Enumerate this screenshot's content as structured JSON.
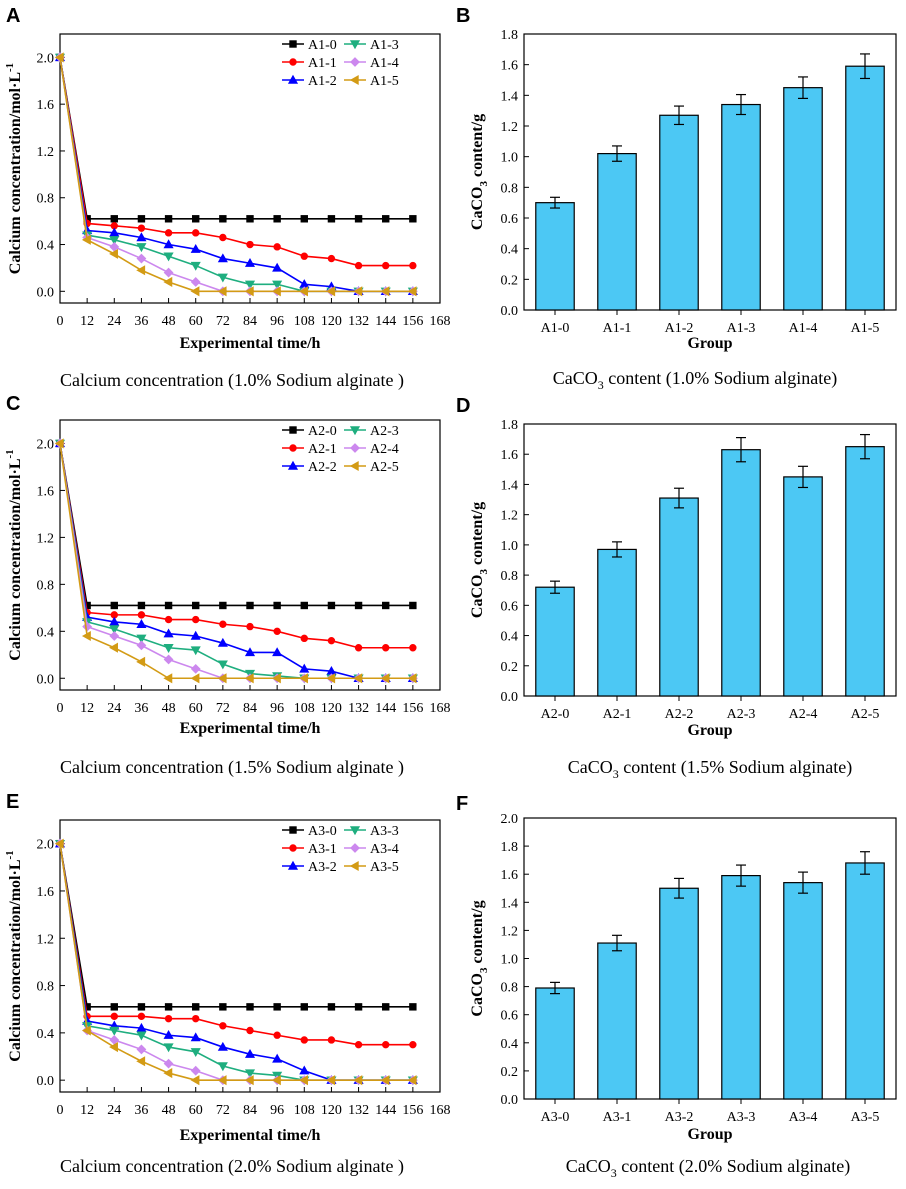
{
  "colors": {
    "bar_fill": "#4cc8f4",
    "bar_stroke": "#000000",
    "axis": "#000000",
    "series": [
      "#000000",
      "#ff0000",
      "#0000ff",
      "#1fae7f",
      "#cc88ee",
      "#d39b15"
    ]
  },
  "chart_data": [
    {
      "id": "A",
      "letter": "A",
      "type": "line",
      "xlabel": "Experimental time/h",
      "ylabel": "Calcium concentration/mol·L",
      "ylabel_sup": "-1",
      "x_ticks": [
        "0",
        "12",
        "24",
        "36",
        "48",
        "60",
        "72",
        "84",
        "96",
        "108",
        "120",
        "132",
        "144",
        "156",
        "168"
      ],
      "xlim": [
        0,
        168
      ],
      "ylim": [
        -0.1,
        2.2
      ],
      "y_ticks": [
        "0.0",
        "0.4",
        "0.8",
        "1.2",
        "1.6",
        "2.0"
      ],
      "caption": "Calcium concentration (1.0% Sodium alginate )",
      "x": [
        0,
        12,
        24,
        36,
        48,
        60,
        72,
        84,
        96,
        108,
        120,
        132,
        144,
        156
      ],
      "series": [
        {
          "name": "A1-0",
          "marker": "square",
          "values": [
            2.0,
            0.62,
            0.62,
            0.62,
            0.62,
            0.62,
            0.62,
            0.62,
            0.62,
            0.62,
            0.62,
            0.62,
            0.62,
            0.62
          ]
        },
        {
          "name": "A1-1",
          "marker": "circle",
          "values": [
            2.0,
            0.58,
            0.56,
            0.54,
            0.5,
            0.5,
            0.46,
            0.4,
            0.38,
            0.3,
            0.28,
            0.22,
            0.22,
            0.22
          ]
        },
        {
          "name": "A1-2",
          "marker": "triangle-up",
          "values": [
            2.0,
            0.52,
            0.5,
            0.46,
            0.4,
            0.36,
            0.28,
            0.24,
            0.2,
            0.06,
            0.04,
            0.0,
            0.0,
            0.0
          ]
        },
        {
          "name": "A1-3",
          "marker": "triangle-down",
          "values": [
            2.0,
            0.48,
            0.44,
            0.38,
            0.3,
            0.22,
            0.12,
            0.06,
            0.06,
            0.0,
            0.0,
            0.0,
            0.0,
            0.0
          ]
        },
        {
          "name": "A1-4",
          "marker": "diamond",
          "values": [
            2.0,
            0.46,
            0.38,
            0.28,
            0.16,
            0.08,
            0.0,
            0.0,
            0.0,
            0.0,
            0.0,
            0.0,
            0.0,
            0.0
          ]
        },
        {
          "name": "A1-5",
          "marker": "left-triangle",
          "values": [
            2.0,
            0.44,
            0.32,
            0.18,
            0.08,
            0.0,
            0.0,
            0.0,
            0.0,
            0.0,
            0.0,
            0.0,
            0.0,
            0.0
          ]
        }
      ]
    },
    {
      "id": "B",
      "letter": "B",
      "type": "bar",
      "xlabel": "Group",
      "ylabel_main": "CaCO",
      "ylabel_sub": "3",
      "ylabel_tail": " content/g",
      "ylim": [
        0,
        1.8
      ],
      "y_ticks": [
        "0.0",
        "0.2",
        "0.4",
        "0.6",
        "0.8",
        "1.0",
        "1.2",
        "1.4",
        "1.6",
        "1.8"
      ],
      "caption_main": "CaCO",
      "caption_sub": "3",
      "caption_tail": " content (1.0% Sodium alginate)",
      "categories": [
        "A1-0",
        "A1-1",
        "A1-2",
        "A1-3",
        "A1-4",
        "A1-5"
      ],
      "values": [
        0.7,
        1.02,
        1.27,
        1.34,
        1.45,
        1.59
      ],
      "errors": [
        0.035,
        0.05,
        0.06,
        0.065,
        0.07,
        0.08
      ]
    },
    {
      "id": "C",
      "letter": "C",
      "type": "line",
      "xlabel": "Experimental time/h",
      "ylabel": "Calcium concentration/mol·L",
      "ylabel_sup": "-1",
      "x_ticks": [
        "0",
        "12",
        "24",
        "36",
        "48",
        "60",
        "72",
        "84",
        "96",
        "108",
        "120",
        "132",
        "144",
        "156",
        "168"
      ],
      "xlim": [
        0,
        168
      ],
      "ylim": [
        -0.1,
        2.2
      ],
      "y_ticks": [
        "0.0",
        "0.4",
        "0.8",
        "1.2",
        "1.6",
        "2.0"
      ],
      "caption": "Calcium concentration (1.5% Sodium alginate )",
      "x": [
        0,
        12,
        24,
        36,
        48,
        60,
        72,
        84,
        96,
        108,
        120,
        132,
        144,
        156
      ],
      "series": [
        {
          "name": "A2-0",
          "marker": "square",
          "values": [
            2.0,
            0.62,
            0.62,
            0.62,
            0.62,
            0.62,
            0.62,
            0.62,
            0.62,
            0.62,
            0.62,
            0.62,
            0.62,
            0.62
          ]
        },
        {
          "name": "A2-1",
          "marker": "circle",
          "values": [
            2.0,
            0.56,
            0.54,
            0.54,
            0.5,
            0.5,
            0.46,
            0.44,
            0.4,
            0.34,
            0.32,
            0.26,
            0.26,
            0.26
          ]
        },
        {
          "name": "A2-2",
          "marker": "triangle-up",
          "values": [
            2.0,
            0.52,
            0.48,
            0.46,
            0.38,
            0.36,
            0.3,
            0.22,
            0.22,
            0.08,
            0.06,
            0.0,
            0.0,
            0.0
          ]
        },
        {
          "name": "A2-3",
          "marker": "triangle-down",
          "values": [
            2.0,
            0.48,
            0.42,
            0.34,
            0.26,
            0.24,
            0.12,
            0.04,
            0.02,
            0.0,
            0.0,
            0.0,
            0.0,
            0.0
          ]
        },
        {
          "name": "A2-4",
          "marker": "diamond",
          "values": [
            2.0,
            0.44,
            0.36,
            0.28,
            0.16,
            0.08,
            0.0,
            0.0,
            0.0,
            0.0,
            0.0,
            0.0,
            0.0,
            0.0
          ]
        },
        {
          "name": "A2-5",
          "marker": "left-triangle",
          "values": [
            2.0,
            0.36,
            0.26,
            0.14,
            0.0,
            0.0,
            0.0,
            0.0,
            0.0,
            0.0,
            0.0,
            0.0,
            0.0,
            0.0
          ]
        }
      ]
    },
    {
      "id": "D",
      "letter": "D",
      "type": "bar",
      "xlabel": "Group",
      "ylabel_main": "CaCO",
      "ylabel_sub": "3",
      "ylabel_tail": " content/g",
      "ylim": [
        0,
        1.8
      ],
      "y_ticks": [
        "0.0",
        "0.2",
        "0.4",
        "0.6",
        "0.8",
        "1.0",
        "1.2",
        "1.4",
        "1.6",
        "1.8"
      ],
      "caption_main": "CaCO",
      "caption_sub": "3",
      "caption_tail": " content (1.5% Sodium alginate)",
      "categories": [
        "A2-0",
        "A2-1",
        "A2-2",
        "A2-3",
        "A2-4",
        "A2-5"
      ],
      "values": [
        0.72,
        0.97,
        1.31,
        1.63,
        1.45,
        1.65
      ],
      "errors": [
        0.04,
        0.05,
        0.065,
        0.08,
        0.07,
        0.08
      ]
    },
    {
      "id": "E",
      "letter": "E",
      "type": "line",
      "xlabel": "Experimental time/h",
      "ylabel": "Calcium concentration/mol·L",
      "ylabel_sup": "-1",
      "x_ticks": [
        "0",
        "12",
        "24",
        "36",
        "48",
        "60",
        "72",
        "84",
        "96",
        "108",
        "120",
        "132",
        "144",
        "156",
        "168"
      ],
      "xlim": [
        0,
        168
      ],
      "ylim": [
        -0.1,
        2.2
      ],
      "y_ticks": [
        "0.0",
        "0.4",
        "0.8",
        "1.2",
        "1.6",
        "2.0"
      ],
      "caption": "Calcium concentration (2.0% Sodium alginate )",
      "x": [
        0,
        12,
        24,
        36,
        48,
        60,
        72,
        84,
        96,
        108,
        120,
        132,
        144,
        156
      ],
      "series": [
        {
          "name": "A3-0",
          "marker": "square",
          "values": [
            2.0,
            0.62,
            0.62,
            0.62,
            0.62,
            0.62,
            0.62,
            0.62,
            0.62,
            0.62,
            0.62,
            0.62,
            0.62,
            0.62
          ]
        },
        {
          "name": "A3-1",
          "marker": "circle",
          "values": [
            2.0,
            0.54,
            0.54,
            0.54,
            0.52,
            0.52,
            0.46,
            0.42,
            0.38,
            0.34,
            0.34,
            0.3,
            0.3,
            0.3
          ]
        },
        {
          "name": "A3-2",
          "marker": "triangle-up",
          "values": [
            2.0,
            0.5,
            0.46,
            0.44,
            0.38,
            0.36,
            0.28,
            0.22,
            0.18,
            0.08,
            0.0,
            0.0,
            0.0,
            0.0
          ]
        },
        {
          "name": "A3-3",
          "marker": "triangle-down",
          "values": [
            2.0,
            0.46,
            0.42,
            0.38,
            0.28,
            0.24,
            0.12,
            0.06,
            0.04,
            0.0,
            0.0,
            0.0,
            0.0,
            0.0
          ]
        },
        {
          "name": "A3-4",
          "marker": "diamond",
          "values": [
            2.0,
            0.42,
            0.34,
            0.26,
            0.14,
            0.08,
            0.0,
            0.0,
            0.0,
            0.0,
            0.0,
            0.0,
            0.0,
            0.0
          ]
        },
        {
          "name": "A3-5",
          "marker": "left-triangle",
          "values": [
            2.0,
            0.42,
            0.28,
            0.16,
            0.06,
            0.0,
            0.0,
            0.0,
            0.0,
            0.0,
            0.0,
            0.0,
            0.0,
            0.0
          ]
        }
      ]
    },
    {
      "id": "F",
      "letter": "F",
      "type": "bar",
      "xlabel": "Group",
      "ylabel_main": "CaCO",
      "ylabel_sub": "3",
      "ylabel_tail": " content/g",
      "ylim": [
        0,
        2.0
      ],
      "y_ticks": [
        "0.0",
        "0.2",
        "0.4",
        "0.6",
        "0.8",
        "1.0",
        "1.2",
        "1.4",
        "1.6",
        "1.8",
        "2.0"
      ],
      "caption_main": "CaCO",
      "caption_sub": "3",
      "caption_tail": " content (2.0% Sodium alginate)",
      "categories": [
        "A3-0",
        "A3-1",
        "A3-2",
        "A3-3",
        "A3-4",
        "A3-5"
      ],
      "values": [
        0.79,
        1.11,
        1.5,
        1.59,
        1.54,
        1.68
      ],
      "errors": [
        0.04,
        0.055,
        0.07,
        0.075,
        0.075,
        0.08
      ]
    }
  ]
}
